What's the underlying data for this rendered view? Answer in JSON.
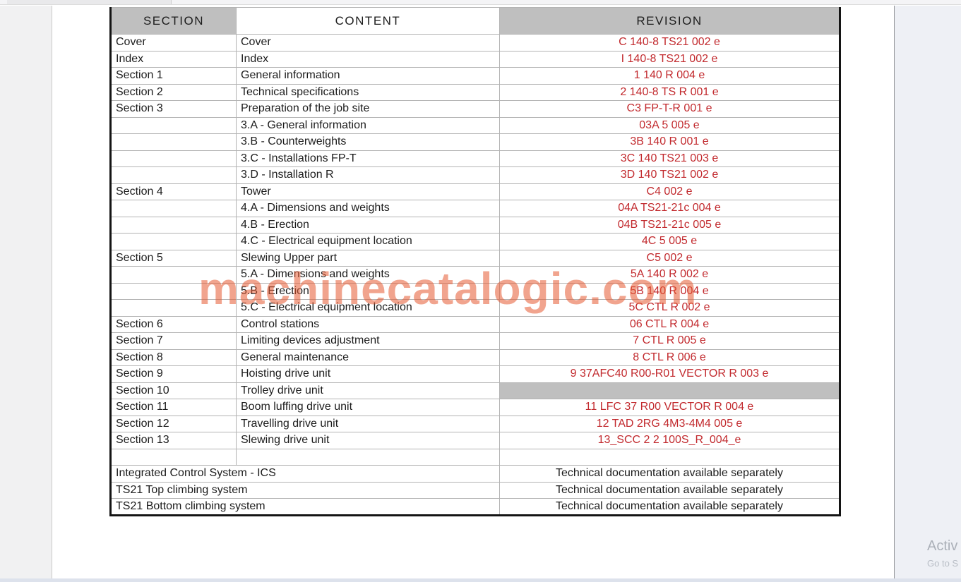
{
  "colors": {
    "revision_red": "#c22a2e",
    "header_gray": "#bfbfbf",
    "watermark_salmon": "#f1a48e",
    "table_border_black": "#141414"
  },
  "watermark_text": "machinecatalogic.com",
  "activation": {
    "line1": "Activ",
    "line2": "Go to S"
  },
  "table": {
    "headers": [
      "SECTION",
      "CONTENT",
      "REVISION"
    ],
    "rows": [
      {
        "section": "Cover",
        "content": "Cover",
        "revision": "C  140-8  TS21  002  e",
        "revision_style": "red"
      },
      {
        "section": "Index",
        "content": "Index",
        "revision": "I  140-8  TS21  002  e",
        "revision_style": "red"
      },
      {
        "section": "Section 1",
        "content": "General information",
        "revision": "1  140  R  004  e",
        "revision_style": "red"
      },
      {
        "section": "Section 2",
        "content": "Technical specifications",
        "revision": "2  140-8  TS  R  001  e",
        "revision_style": "red"
      },
      {
        "section": "Section 3",
        "content": "Preparation of the job site",
        "revision": "C3  FP-T-R  001  e",
        "revision_style": "red"
      },
      {
        "section": "",
        "content": "3.A - General information",
        "revision": "03A  5  005  e",
        "revision_style": "red"
      },
      {
        "section": "",
        "content": "3.B - Counterweights",
        "revision": "3B  140  R  001  e",
        "revision_style": "red"
      },
      {
        "section": "",
        "content": "3.C - Installations FP-T",
        "revision": "3C  140  TS21  003  e",
        "revision_style": "red"
      },
      {
        "section": "",
        "content": "3.D - Installation R",
        "revision": "3D  140  TS21  002  e",
        "revision_style": "red"
      },
      {
        "section": "Section 4",
        "content": "Tower",
        "revision": "C4  002  e",
        "revision_style": "red"
      },
      {
        "section": "",
        "content": "4.A - Dimensions and weights",
        "revision": "04A  TS21-21c  004  e",
        "revision_style": "red"
      },
      {
        "section": "",
        "content": "4.B - Erection",
        "revision": "04B  TS21-21c  005  e",
        "revision_style": "red"
      },
      {
        "section": "",
        "content": "4.C - Electrical equipment location",
        "revision": "4C  5  005  e",
        "revision_style": "red"
      },
      {
        "section": "Section 5",
        "content": "Slewing Upper part",
        "revision": "C5  002  e",
        "revision_style": "red"
      },
      {
        "section": "",
        "content": "5.A - Dimensions and weights",
        "revision": "5A  140  R  002  e",
        "revision_style": "red"
      },
      {
        "section": "",
        "content": "5.B - Erection",
        "revision": "5B  140  R  004  e",
        "revision_style": "red"
      },
      {
        "section": "",
        "content": "5.C - Electrical equipment location",
        "revision": "5C  CTL  R  002  e",
        "revision_style": "red"
      },
      {
        "section": "Section 6",
        "content": "Control stations",
        "revision": "06  CTL  R  004  e",
        "revision_style": "red"
      },
      {
        "section": "Section 7",
        "content": "Limiting devices adjustment",
        "revision": "7  CTL  R  005  e",
        "revision_style": "red"
      },
      {
        "section": "Section 8",
        "content": "General maintenance",
        "revision": "8  CTL  R  006  e",
        "revision_style": "red"
      },
      {
        "section": "Section 9",
        "content": "Hoisting drive unit",
        "revision": "9  37AFC40 R00-R01  VECTOR  R  003  e",
        "revision_style": "red"
      },
      {
        "section": "Section 10",
        "content": "Trolley drive unit",
        "revision": "",
        "revision_style": "gray"
      },
      {
        "section": "Section 11",
        "content": "Boom luffing drive unit",
        "revision": "11  LFC 37 R00  VECTOR  R  004  e",
        "revision_style": "red"
      },
      {
        "section": "Section 12",
        "content": "Travelling drive unit",
        "revision": "12  TAD  2RG  4M3-4M4  005  e",
        "revision_style": "red"
      },
      {
        "section": "Section 13",
        "content": "Slewing drive unit",
        "revision": "13_SCC 2 2 100S_R_004_e",
        "revision_style": "red"
      },
      {
        "section": "",
        "content": "",
        "revision": "",
        "revision_style": "red"
      },
      {
        "span": true,
        "span_label": "Integrated Control System - ICS",
        "revision": "Technical documentation available separately",
        "revision_style": "black"
      },
      {
        "span": true,
        "span_label": "TS21 Top climbing system",
        "revision": "Technical documentation available separately",
        "revision_style": "black"
      },
      {
        "span": true,
        "span_label": "TS21 Bottom climbing system",
        "revision": "Technical documentation available separately",
        "revision_style": "black"
      }
    ]
  }
}
